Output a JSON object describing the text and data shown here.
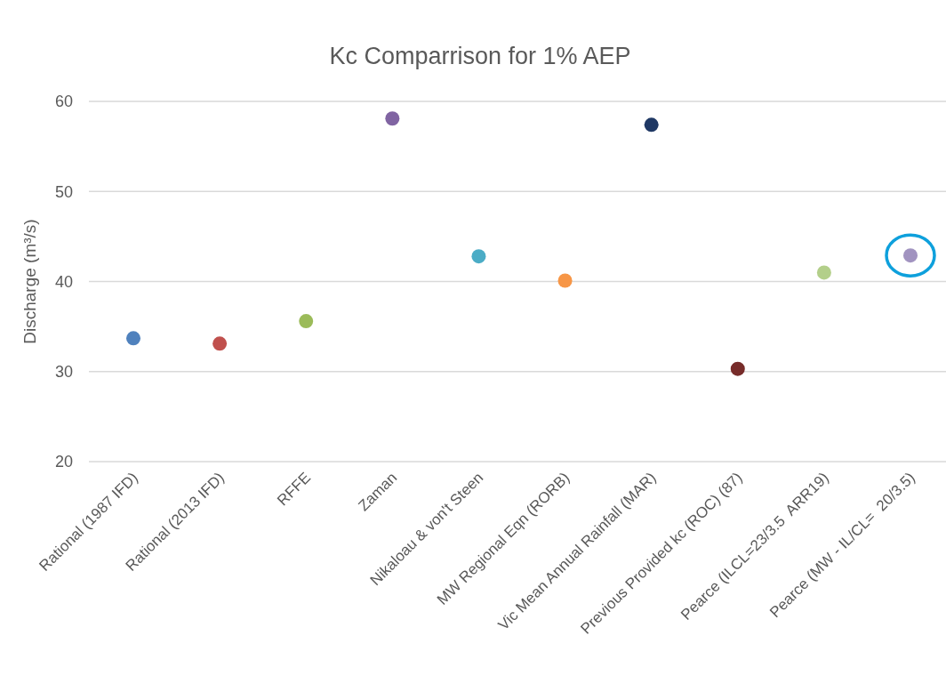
{
  "chart_data": {
    "type": "scatter",
    "title": "Kc Comparrison for 1% AEP",
    "ylabel": "Discharge (m³/s)",
    "categories": [
      "Rational (1987 IFD)",
      "Rational (2013 IFD)",
      "RFFE",
      "Zaman",
      "Nikaloau & von't Steen",
      "MW Regional Eqn (RORB)",
      "Vic Mean Annual Rainfall (MAR)",
      "Previous Provided kc (ROC) (87)",
      "Pearce (ILCL=23/3.5  ARR19)",
      "Pearce (MW - IL/CL=  20/3.5)"
    ],
    "values": [
      33.7,
      33.1,
      35.6,
      58.1,
      42.8,
      40.1,
      57.4,
      30.3,
      41.0,
      42.9
    ],
    "colors": [
      "#4f81bd",
      "#c0504d",
      "#9bbb59",
      "#8064a2",
      "#4bacc6",
      "#f79646",
      "#1f3864",
      "#772c2a",
      "#b3cf8a",
      "#a193c0"
    ],
    "ylim": [
      20,
      60
    ],
    "yticks": [
      20,
      30,
      40,
      50,
      60
    ],
    "grid": "y",
    "marker": "circle"
  }
}
